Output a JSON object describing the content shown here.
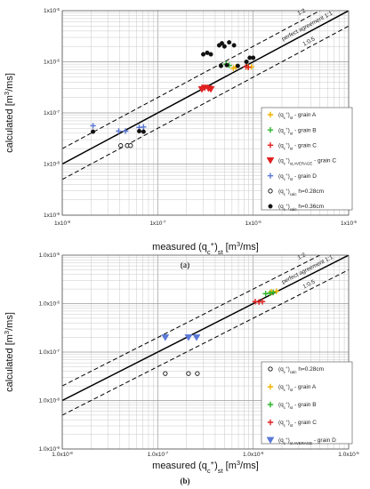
{
  "figure": {
    "labels": [
      "(a)",
      "(b)"
    ]
  },
  "chart_data": [
    {
      "type": "scatter",
      "panel": "(a)",
      "xscale": "log",
      "yscale": "log",
      "xlim": [
        1e-08,
        1e-05
      ],
      "ylim": [
        1e-09,
        1e-05
      ],
      "xlabel": "measured (qc+)st [m3/ms]",
      "ylabel": "calculated [m3/ms]",
      "x_tick_labels": [
        "1x10-8",
        "1x10-7",
        "1x10-6",
        "1x10-5"
      ],
      "y_tick_labels": [
        "1x10-9",
        "1x10-8",
        "1x10-7",
        "1x10-6",
        "1x10-5"
      ],
      "grid": true,
      "legend_position": "lower-right",
      "annotations": [
        "perfect agreement 1:1",
        "1:2",
        "1:0.5"
      ],
      "reference_lines": [
        {
          "label": "perfect agreement 1:1",
          "factor": 1,
          "style": "solid"
        },
        {
          "label": "1:2",
          "factor": 2,
          "style": "dashed"
        },
        {
          "label": "1:0.5",
          "factor": 0.5,
          "style": "dashed"
        }
      ],
      "series": [
        {
          "name": "(qc+)st - grain A",
          "marker": "plus",
          "color": "#f0b400",
          "x": [
            6.2e-07,
            6.6e-07,
            8.8e-07,
            9.6e-07
          ],
          "y": [
            7.5e-07,
            7.9e-07,
            7.9e-07,
            8e-07
          ]
        },
        {
          "name": "(qc+)st - grain B",
          "marker": "plus",
          "color": "#2cb52c",
          "x": [
            5.2e-07,
            5.6e-07
          ],
          "y": [
            9e-07,
            8.5e-07
          ]
        },
        {
          "name": "(qc+)st - grain C",
          "marker": "plus",
          "color": "#e02020",
          "x": [
            8.4e-07,
            8.9e-07
          ],
          "y": [
            8e-07,
            7.8e-07
          ]
        },
        {
          "name": "(qc+)st,AVERAGE - grain C",
          "marker": "triangle-down",
          "color": "#e02020",
          "x": [
            2.9e-07,
            3.1e-07,
            3.4e-07,
            3.6e-07
          ],
          "y": [
            2.9e-07,
            3.1e-07,
            3e-07,
            2.9e-07
          ]
        },
        {
          "name": "(qc+)st - grain D",
          "marker": "plus",
          "color": "#5a78d6",
          "x": [
            2.1e-08,
            3.9e-08,
            4.6e-08,
            6.4e-08,
            7.1e-08
          ],
          "y": [
            5.6e-08,
            4.4e-08,
            4.4e-08,
            5.2e-08,
            5.3e-08
          ]
        },
        {
          "name": "(qc+)calc h=0.28cm",
          "marker": "circle-open",
          "color": "#111111",
          "x": [
            4.1e-08,
            4.8e-08,
            5.2e-08
          ],
          "y": [
            2.3e-08,
            2.3e-08,
            2.3e-08
          ]
        },
        {
          "name": "(qc+)calc h=0.36cm",
          "marker": "circle-filled",
          "color": "#111111",
          "x": [
            2.1e-08,
            6.4e-08,
            7.1e-08,
            3e-07,
            3.3e-07,
            3.6e-07,
            4.4e-07,
            4.7e-07,
            5e-07,
            5.6e-07,
            6.3e-07,
            4.6e-07,
            5.3e-07,
            6.9e-07,
            9.2e-07,
            1e-06,
            8.5e-07
          ],
          "y": [
            4.3e-08,
            4.4e-08,
            4.3e-08,
            1.4e-06,
            1.5e-06,
            1.4e-06,
            2.1e-06,
            2.3e-06,
            2e-06,
            2.4e-06,
            2.1e-06,
            8.3e-07,
            8.6e-07,
            8.3e-07,
            1.2e-06,
            1.2e-06,
            1e-06
          ]
        }
      ]
    },
    {
      "type": "scatter",
      "panel": "(b)",
      "xscale": "log",
      "yscale": "log",
      "xlim": [
        1e-08,
        1e-05
      ],
      "ylim": [
        1e-09,
        1e-05
      ],
      "xlabel": "measured (qc+)st [m3/ms]",
      "ylabel": "calculated [m3/ms]",
      "x_tick_labels": [
        "1.0x10-8",
        "1.0x10-7",
        "1.0x10-6",
        "1.0x10-5"
      ],
      "y_tick_labels": [
        "1.0x10-9",
        "1.0x10-8",
        "1.0x10-7",
        "1.0x10-6",
        "1.0x10-5"
      ],
      "grid": true,
      "legend_position": "lower-right",
      "annotations": [
        "perfect agreement 1:1",
        "1:2",
        "1:0.5"
      ],
      "reference_lines": [
        {
          "label": "perfect agreement 1:1",
          "factor": 1,
          "style": "solid"
        },
        {
          "label": "1:2",
          "factor": 2,
          "style": "dashed"
        },
        {
          "label": "1:0.5",
          "factor": 0.5,
          "style": "dashed"
        }
      ],
      "series": [
        {
          "name": "(qc+)calc h=0.28cm",
          "marker": "circle-open",
          "color": "#111111",
          "x": [
            1.2e-07,
            2.1e-07,
            2.6e-07
          ],
          "y": [
            3.6e-08,
            3.6e-08,
            3.6e-08
          ]
        },
        {
          "name": "(qc+)st - grain A",
          "marker": "plus",
          "color": "#f0b400",
          "x": [
            1.55e-06,
            1.75e-06
          ],
          "y": [
            1.75e-06,
            1.8e-06
          ]
        },
        {
          "name": "(qc+)st - grain B",
          "marker": "plus",
          "color": "#2cb52c",
          "x": [
            1.35e-06,
            1.5e-06,
            1.62e-06
          ],
          "y": [
            1.6e-06,
            1.65e-06,
            1.7e-06
          ]
        },
        {
          "name": "(qc+)st - grain C",
          "marker": "plus",
          "color": "#e02020",
          "x": [
            1.05e-06,
            1.15e-06,
            1.25e-06
          ],
          "y": [
            1.1e-06,
            1.08e-06,
            1.1e-06
          ]
        },
        {
          "name": "(qc+)st AVERAGE - grain D",
          "marker": "triangle-down",
          "color": "#5a78d6",
          "x": [
            1.2e-07,
            2.1e-07,
            2.55e-07
          ],
          "y": [
            2e-07,
            2e-07,
            2e-07
          ]
        }
      ]
    }
  ]
}
